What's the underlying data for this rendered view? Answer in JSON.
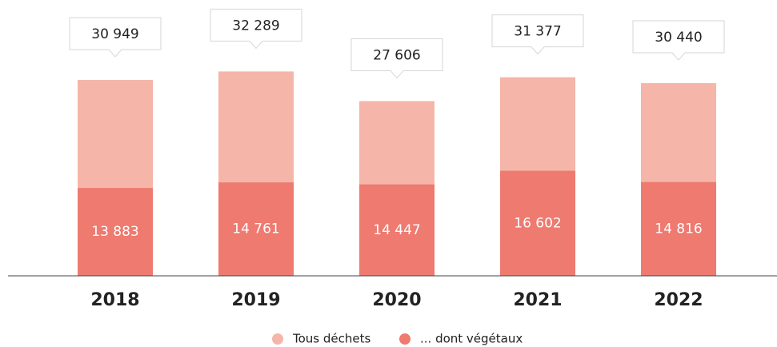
{
  "chart_data": {
    "type": "bar",
    "categories": [
      "2018",
      "2019",
      "2020",
      "2021",
      "2022"
    ],
    "series": [
      {
        "name": "Tous déchets",
        "color": "#f5b5a8",
        "values": [
          30949,
          32289,
          27606,
          31377,
          30440
        ],
        "value_labels": [
          "30 949",
          "32 289",
          "27 606",
          "31 377",
          "30 440"
        ]
      },
      {
        "name": "... dont végétaux",
        "color": "#ee7a70",
        "values": [
          13883,
          14761,
          14447,
          16602,
          14816
        ],
        "value_labels": [
          "13 883",
          "14 761",
          "14 447",
          "16 602",
          "14 816"
        ]
      }
    ]
  }
}
